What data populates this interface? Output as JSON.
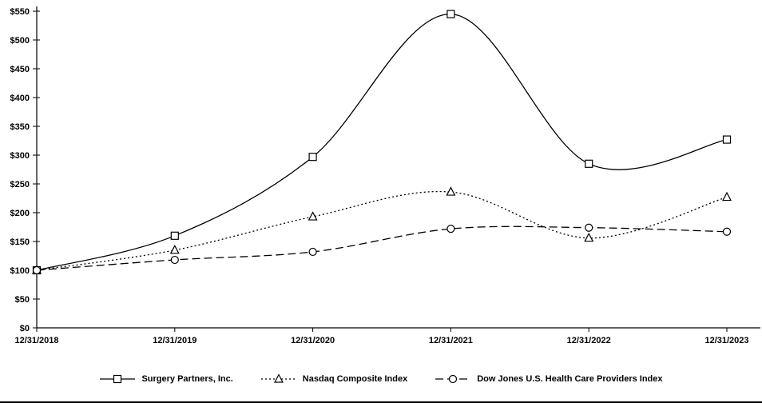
{
  "chart_data": {
    "type": "line",
    "title": "",
    "xlabel": "",
    "ylabel": "",
    "x_labels": [
      "12/31/2018",
      "12/31/2019",
      "12/31/2020",
      "12/31/2021",
      "12/31/2022",
      "12/31/2023"
    ],
    "y_ticks": [
      "$0",
      "$50",
      "$100",
      "$150",
      "$200",
      "$250",
      "$300",
      "$350",
      "$400",
      "$450",
      "$500",
      "$550"
    ],
    "y_step": 50,
    "ylim": [
      0,
      550
    ],
    "grid": false,
    "legend_position": "bottom",
    "colors": {
      "line": "#000000",
      "background": "#ffffff",
      "marker_fill": "#ffffff"
    },
    "series": [
      {
        "name": "Surgery Partners, Inc.",
        "marker": "square",
        "dash": "solid",
        "values": [
          100,
          160,
          297,
          545,
          285,
          327
        ]
      },
      {
        "name": "Nasdaq Composite Index",
        "marker": "triangle",
        "dash": "dotted",
        "values": [
          100,
          135,
          193,
          236,
          156,
          227
        ]
      },
      {
        "name": "Dow Jones U.S. Health Care Providers Index",
        "marker": "circle",
        "dash": "dashed",
        "values": [
          100,
          118,
          132,
          172,
          174,
          167
        ]
      }
    ]
  }
}
